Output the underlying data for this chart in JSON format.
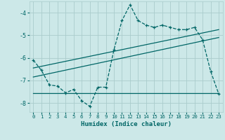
{
  "xlabel": "Humidex (Indice chaleur)",
  "bg_color": "#cce8e8",
  "grid_color": "#aacccc",
  "line_color": "#006666",
  "xlim": [
    -0.5,
    23.5
  ],
  "ylim": [
    -8.4,
    -3.5
  ],
  "yticks": [
    -8,
    -7,
    -6,
    -5,
    -4
  ],
  "xticks": [
    0,
    1,
    2,
    3,
    4,
    5,
    6,
    7,
    8,
    9,
    10,
    11,
    12,
    13,
    14,
    15,
    16,
    17,
    18,
    19,
    20,
    21,
    22,
    23
  ],
  "series1_x": [
    0,
    1,
    2,
    3,
    4,
    5,
    6,
    7,
    8,
    9,
    10,
    11,
    12,
    13,
    14,
    15,
    16,
    17,
    18,
    19,
    20,
    21,
    22,
    23
  ],
  "series1_y": [
    -6.1,
    -6.55,
    -7.2,
    -7.25,
    -7.55,
    -7.4,
    -7.9,
    -8.15,
    -7.3,
    -7.3,
    -5.65,
    -4.35,
    -3.65,
    -4.35,
    -4.55,
    -4.65,
    -4.55,
    -4.65,
    -4.75,
    -4.75,
    -4.65,
    -5.2,
    -6.6,
    -7.6
  ],
  "series2_x": [
    0,
    23
  ],
  "series2_y": [
    -6.45,
    -4.75
  ],
  "series3_x": [
    0,
    23
  ],
  "series3_y": [
    -6.85,
    -5.1
  ],
  "series4_x": [
    0,
    23
  ],
  "series4_y": [
    -7.55,
    -7.55
  ]
}
